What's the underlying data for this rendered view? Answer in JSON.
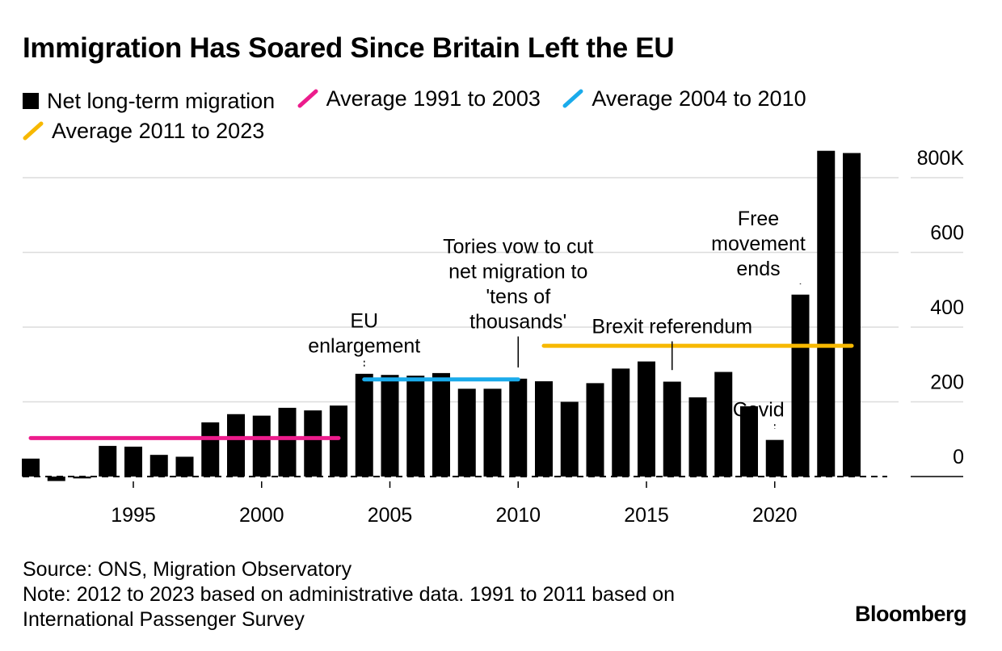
{
  "chart_data": {
    "type": "bar",
    "title": "Immigration Has Soared Since Britain Left the EU",
    "legend": [
      {
        "name": "Net long-term migration",
        "color": "#000000",
        "marker": "box"
      },
      {
        "name": "Average 1991 to 2003",
        "color": "#ec1c8c",
        "marker": "slash"
      },
      {
        "name": "Average 2004 to 2010",
        "color": "#1aabeb",
        "marker": "slash"
      },
      {
        "name": "Average 2011 to 2023",
        "color": "#f7b800",
        "marker": "slash"
      }
    ],
    "x": [
      1991,
      1992,
      1993,
      1994,
      1995,
      1996,
      1997,
      1998,
      1999,
      2000,
      2001,
      2002,
      2003,
      2004,
      2005,
      2006,
      2007,
      2008,
      2009,
      2010,
      2011,
      2012,
      2013,
      2014,
      2015,
      2016,
      2017,
      2018,
      2019,
      2020,
      2021,
      2022,
      2023
    ],
    "series": [
      {
        "name": "Net long-term migration",
        "values": [
          48,
          -12,
          -5,
          82,
          80,
          58,
          53,
          145,
          167,
          163,
          184,
          177,
          190,
          275,
          272,
          270,
          277,
          235,
          235,
          262,
          255,
          200,
          250,
          289,
          308,
          254,
          212,
          280,
          188,
          98,
          487,
          872,
          866
        ]
      }
    ],
    "averages": [
      {
        "name": "Average 1991 to 2003",
        "from": 1991,
        "to": 2003,
        "value": 103,
        "color": "#ec1c8c"
      },
      {
        "name": "Average 2004 to 2010",
        "from": 2004,
        "to": 2010,
        "value": 260,
        "color": "#1aabeb"
      },
      {
        "name": "Average 2011 to 2023",
        "from": 2011,
        "to": 2023,
        "value": 350,
        "color": "#f7b800"
      }
    ],
    "y_ticks": [
      {
        "value": 800,
        "label": "800K"
      },
      {
        "value": 600,
        "label": "600"
      },
      {
        "value": 400,
        "label": "400"
      },
      {
        "value": 200,
        "label": "200"
      },
      {
        "value": 0,
        "label": "0"
      }
    ],
    "x_ticks": [
      1995,
      2000,
      2005,
      2010,
      2015,
      2020
    ],
    "ylim": [
      -20,
      880
    ],
    "xlabel": "",
    "ylabel": "",
    "grid": true,
    "annotations": [
      {
        "year": 2004,
        "lines": [
          "EU",
          "enlargement"
        ],
        "style": "dotted",
        "tip": 295,
        "base": 310
      },
      {
        "year": 2010,
        "lines": [
          "Tories vow to cut",
          "net migration to",
          "'tens of",
          "thousands'"
        ],
        "style": "solid",
        "tip": 292,
        "base": 375
      },
      {
        "year": 2016,
        "lines": [
          "Brexit referendum"
        ],
        "style": "solid",
        "tip": 285,
        "base": 362
      },
      {
        "year": 2020,
        "lines": [
          "Covid"
        ],
        "style": "dotted",
        "tip": 128,
        "base": 140
      },
      {
        "year": 2021,
        "lines": [
          "Free",
          "movement",
          "ends"
        ],
        "style": "solid",
        "tip": 515,
        "base": 517
      }
    ]
  },
  "footer": {
    "source": "Source: ONS, Migration Observatory",
    "note_line1": "Note: 2012 to 2023 based on administrative data. 1991 to 2011 based on",
    "note_line2": "International Passenger Survey"
  },
  "brand": "Bloomberg"
}
